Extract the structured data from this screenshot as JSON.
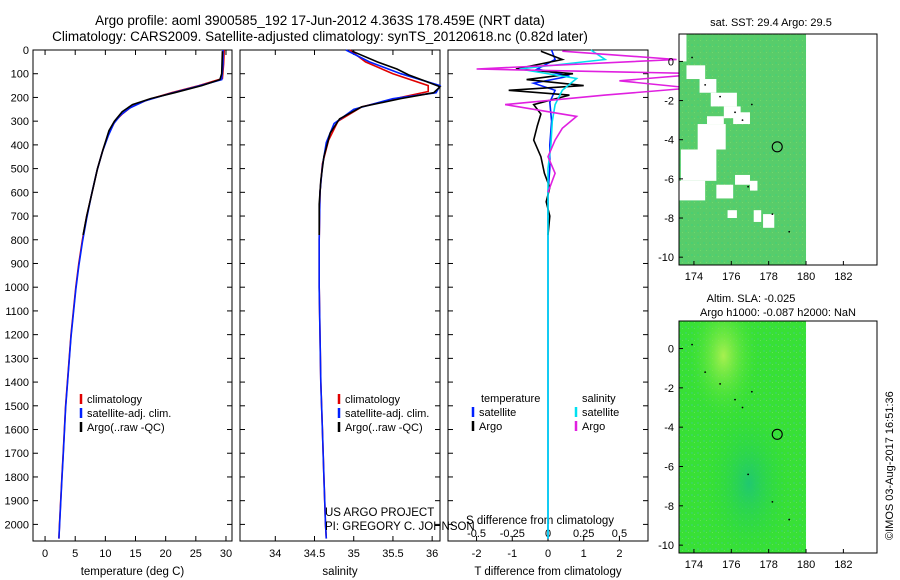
{
  "header": {
    "title_line1": "Argo profile: aoml 3900585_192 17-Jun-2012 4.363S 178.459E (NRT data)",
    "title_line2": "Climatology: CARS2009. Satellite-adjusted climatology: synTS_20120618.nc (0.82d later)"
  },
  "colors": {
    "climatology": "#e00000",
    "satellite": "#0020ff",
    "argo": "#000000",
    "sat_salinity": "#00e0f0",
    "argo_salinity": "#e020e0"
  },
  "chart_data": [
    {
      "type": "line",
      "name": "temperature-profile",
      "xlabel": "temperature (deg C)",
      "ylabel": "",
      "xlim": [
        -2,
        31
      ],
      "ylim": [
        2070,
        0
      ],
      "xticks": [
        "0",
        "5",
        "10",
        "15",
        "20",
        "25",
        "30"
      ],
      "yticks": [
        "0",
        "100",
        "200",
        "300",
        "400",
        "500",
        "600",
        "700",
        "800",
        "900",
        "1000",
        "1100",
        "1200",
        "1300",
        "1400",
        "1500",
        "1600",
        "1700",
        "1800",
        "1900",
        "2000"
      ],
      "legend": [
        "climatology",
        "satellite-adj. clim.",
        "Argo(..raw -QC)"
      ],
      "series": [
        {
          "name": "climatology",
          "color": "#e00000",
          "points": [
            [
              29.7,
              0
            ],
            [
              29.6,
              60
            ],
            [
              29.4,
              120
            ],
            [
              25.5,
              150
            ],
            [
              21,
              180
            ],
            [
              17,
              210
            ],
            [
              14.3,
              240
            ],
            [
              12.8,
              270
            ],
            [
              11.6,
              300
            ],
            [
              10.6,
              350
            ],
            [
              9.6,
              420
            ],
            [
              8.7,
              500
            ],
            [
              7.8,
              600
            ],
            [
              6.9,
              700
            ],
            [
              6.2,
              800
            ],
            [
              5.6,
              900
            ],
            [
              5.1,
              1000
            ],
            [
              4.7,
              1100
            ],
            [
              4.3,
              1200
            ],
            [
              4.0,
              1300
            ],
            [
              3.7,
              1400
            ],
            [
              3.4,
              1500
            ],
            [
              3.2,
              1600
            ],
            [
              3.0,
              1700
            ],
            [
              2.8,
              1800
            ],
            [
              2.6,
              1900
            ],
            [
              2.4,
              2000
            ],
            [
              2.3,
              2060
            ]
          ]
        },
        {
          "name": "satellite-adj. clim.",
          "color": "#0020ff",
          "points": [
            [
              29.5,
              0
            ],
            [
              29.5,
              60
            ],
            [
              29.3,
              125
            ],
            [
              25,
              155
            ],
            [
              20.5,
              185
            ],
            [
              16.5,
              215
            ],
            [
              14,
              245
            ],
            [
              12.5,
              275
            ],
            [
              11.4,
              310
            ],
            [
              10.5,
              360
            ],
            [
              9.5,
              430
            ],
            [
              8.6,
              510
            ],
            [
              7.7,
              610
            ],
            [
              6.9,
              710
            ],
            [
              6.2,
              810
            ],
            [
              5.6,
              910
            ],
            [
              5.1,
              1010
            ],
            [
              4.7,
              1110
            ],
            [
              4.3,
              1210
            ],
            [
              4.0,
              1310
            ],
            [
              3.7,
              1410
            ],
            [
              3.4,
              1510
            ],
            [
              3.2,
              1610
            ],
            [
              3.0,
              1710
            ],
            [
              2.8,
              1810
            ],
            [
              2.6,
              1910
            ],
            [
              2.4,
              2010
            ],
            [
              2.3,
              2060
            ]
          ]
        },
        {
          "name": "Argo(..raw -QC)",
          "color": "#000000",
          "points": [
            [
              29.4,
              5
            ],
            [
              29.3,
              100
            ],
            [
              29.0,
              125
            ],
            [
              26,
              150
            ],
            [
              21.5,
              180
            ],
            [
              17.5,
              205
            ],
            [
              14.5,
              230
            ],
            [
              12.8,
              260
            ],
            [
              11.5,
              300
            ],
            [
              10.6,
              340
            ],
            [
              9.6,
              420
            ],
            [
              8.7,
              500
            ],
            [
              7.8,
              600
            ],
            [
              6.9,
              700
            ],
            [
              6.3,
              780
            ]
          ]
        }
      ]
    },
    {
      "type": "line",
      "name": "salinity-profile",
      "xlabel": "salinity",
      "xlim": [
        33.55,
        36.1
      ],
      "ylim": [
        2070,
        0
      ],
      "xticks": [
        "34",
        "34.5",
        "35",
        "35.5",
        "36"
      ],
      "legend": [
        "climatology",
        "satellite-adj. clim.",
        "Argo(..raw -QC)"
      ],
      "annotation_line1": "US ARGO PROJECT",
      "annotation_line2": "PI: GREGORY C. JOHNSON",
      "series": [
        {
          "name": "climatology",
          "color": "#e00000",
          "points": [
            [
              34.95,
              0
            ],
            [
              35.15,
              50
            ],
            [
              35.5,
              100
            ],
            [
              35.95,
              150
            ],
            [
              35.95,
              175
            ],
            [
              35.6,
              200
            ],
            [
              35.1,
              240
            ],
            [
              34.8,
              300
            ],
            [
              34.68,
              380
            ],
            [
              34.6,
              480
            ],
            [
              34.57,
              600
            ],
            [
              34.56,
              800
            ],
            [
              34.56,
              1000
            ],
            [
              34.57,
              1200
            ],
            [
              34.58,
              1400
            ],
            [
              34.6,
              1600
            ],
            [
              34.62,
              1800
            ],
            [
              34.64,
              2000
            ],
            [
              34.65,
              2060
            ]
          ]
        },
        {
          "name": "satellite-adj. clim.",
          "color": "#0020ff",
          "points": [
            [
              34.9,
              0
            ],
            [
              35.2,
              50
            ],
            [
              35.6,
              100
            ],
            [
              36.1,
              150
            ],
            [
              36.05,
              180
            ],
            [
              35.5,
              205
            ],
            [
              35.0,
              250
            ],
            [
              34.75,
              310
            ],
            [
              34.65,
              390
            ],
            [
              34.6,
              490
            ],
            [
              34.57,
              600
            ],
            [
              34.56,
              800
            ],
            [
              34.56,
              1000
            ],
            [
              34.57,
              1200
            ],
            [
              34.58,
              1400
            ],
            [
              34.6,
              1600
            ],
            [
              34.62,
              1800
            ],
            [
              34.64,
              2000
            ],
            [
              34.65,
              2060
            ]
          ]
        },
        {
          "name": "Argo(..raw -QC)",
          "color": "#000000",
          "points": [
            [
              34.98,
              5
            ],
            [
              35.3,
              50
            ],
            [
              35.55,
              80
            ],
            [
              35.7,
              105
            ],
            [
              35.9,
              130
            ],
            [
              36.1,
              155
            ],
            [
              36.02,
              180
            ],
            [
              35.6,
              205
            ],
            [
              35.1,
              240
            ],
            [
              34.82,
              290
            ],
            [
              34.7,
              350
            ],
            [
              34.62,
              450
            ],
            [
              34.58,
              550
            ],
            [
              34.56,
              650
            ],
            [
              34.56,
              780
            ]
          ]
        }
      ]
    },
    {
      "type": "line",
      "name": "difference-profile",
      "xlabel_top": "S difference from climatology",
      "xlabel": "T difference from climatology",
      "xlim": [
        -2.8,
        2.8
      ],
      "ylim": [
        2070,
        0
      ],
      "s_ticks": [
        "-0.5",
        "-0.25",
        "0",
        "0.25",
        "0.5"
      ],
      "t_ticks": [
        "-2",
        "-1",
        "0",
        "1",
        "2"
      ],
      "legend_temperature_title": "temperature",
      "legend_salinity_title": "salinity",
      "legend_temperature_items": [
        "satellite",
        "Argo"
      ],
      "legend_salinity_items": [
        "satellite",
        "Argo"
      ],
      "series": [
        {
          "name": "temperature satellite",
          "color": "#0020ff",
          "points": [
            [
              0.1,
              0
            ],
            [
              0.2,
              40
            ],
            [
              -0.3,
              80
            ],
            [
              0.6,
              110
            ],
            [
              -0.4,
              140
            ],
            [
              0.2,
              170
            ],
            [
              0.05,
              220
            ],
            [
              0.1,
              300
            ],
            [
              0.05,
              400
            ],
            [
              0.05,
              500
            ],
            [
              0,
              600
            ],
            [
              0,
              800
            ],
            [
              0,
              1000
            ],
            [
              0,
              1500
            ],
            [
              0,
              2060
            ]
          ]
        },
        {
          "name": "temperature Argo",
          "color": "#000000",
          "points": [
            [
              -0.2,
              5
            ],
            [
              0.4,
              40
            ],
            [
              -0.9,
              80
            ],
            [
              0.7,
              100
            ],
            [
              -0.6,
              125
            ],
            [
              1.0,
              150
            ],
            [
              -1.1,
              170
            ],
            [
              0.6,
              190
            ],
            [
              -0.4,
              230
            ],
            [
              -0.2,
              270
            ],
            [
              -0.3,
              320
            ],
            [
              -0.4,
              380
            ],
            [
              -0.2,
              450
            ],
            [
              -0.1,
              520
            ],
            [
              0.05,
              580
            ],
            [
              -0.05,
              640
            ],
            [
              0.05,
              700
            ],
            [
              0,
              780
            ]
          ]
        },
        {
          "name": "salinity satellite",
          "color": "#00e0f0",
          "points": [
            [
              0.3,
              0
            ],
            [
              0.4,
              40
            ],
            [
              -0.2,
              80
            ],
            [
              0.2,
              120
            ],
            [
              0.1,
              170
            ],
            [
              0.05,
              230
            ],
            [
              0.03,
              300
            ],
            [
              0.02,
              400
            ],
            [
              0,
              500
            ],
            [
              0,
              800
            ],
            [
              0,
              1200
            ],
            [
              0,
              2060
            ]
          ]
        },
        {
          "name": "salinity Argo",
          "color": "#e020e0",
          "points": [
            [
              0.1,
              5
            ],
            [
              0.9,
              40
            ],
            [
              -0.5,
              80
            ],
            [
              1.1,
              100
            ],
            [
              0.5,
              130
            ],
            [
              1.0,
              160
            ],
            [
              0.4,
              190
            ],
            [
              -0.3,
              230
            ],
            [
              0.2,
              280
            ],
            [
              0.1,
              330
            ],
            [
              0.05,
              380
            ],
            [
              0,
              450
            ],
            [
              0.05,
              520
            ],
            [
              0,
              600
            ]
          ]
        }
      ]
    },
    {
      "type": "heatmap",
      "name": "sst-map",
      "title": "sat. SST: 29.4  Argo: 29.5",
      "xlim": [
        173.2,
        183.8
      ],
      "ylim": [
        -10.4,
        1.4
      ],
      "xticks": [
        "174",
        "176",
        "178",
        "180",
        "182"
      ],
      "yticks": [
        "0",
        "-2",
        "-4",
        "-6",
        "-8",
        "-10"
      ],
      "argo_position": [
        178.459,
        -4.363
      ]
    },
    {
      "type": "heatmap",
      "name": "sla-map",
      "title_line1": "Altim. SLA: -0.025",
      "title_line2": "Argo h1000: -0.087  h2000: NaN",
      "xlim": [
        173.2,
        183.8
      ],
      "ylim": [
        -10.4,
        1.4
      ],
      "xticks": [
        "174",
        "176",
        "178",
        "180",
        "182"
      ],
      "yticks": [
        "0",
        "-2",
        "-4",
        "-6",
        "-8",
        "-10"
      ],
      "argo_position": [
        178.459,
        -4.363
      ]
    }
  ],
  "footer": {
    "stamp": "©IMOS 03-Aug-2017 16:51:36"
  }
}
